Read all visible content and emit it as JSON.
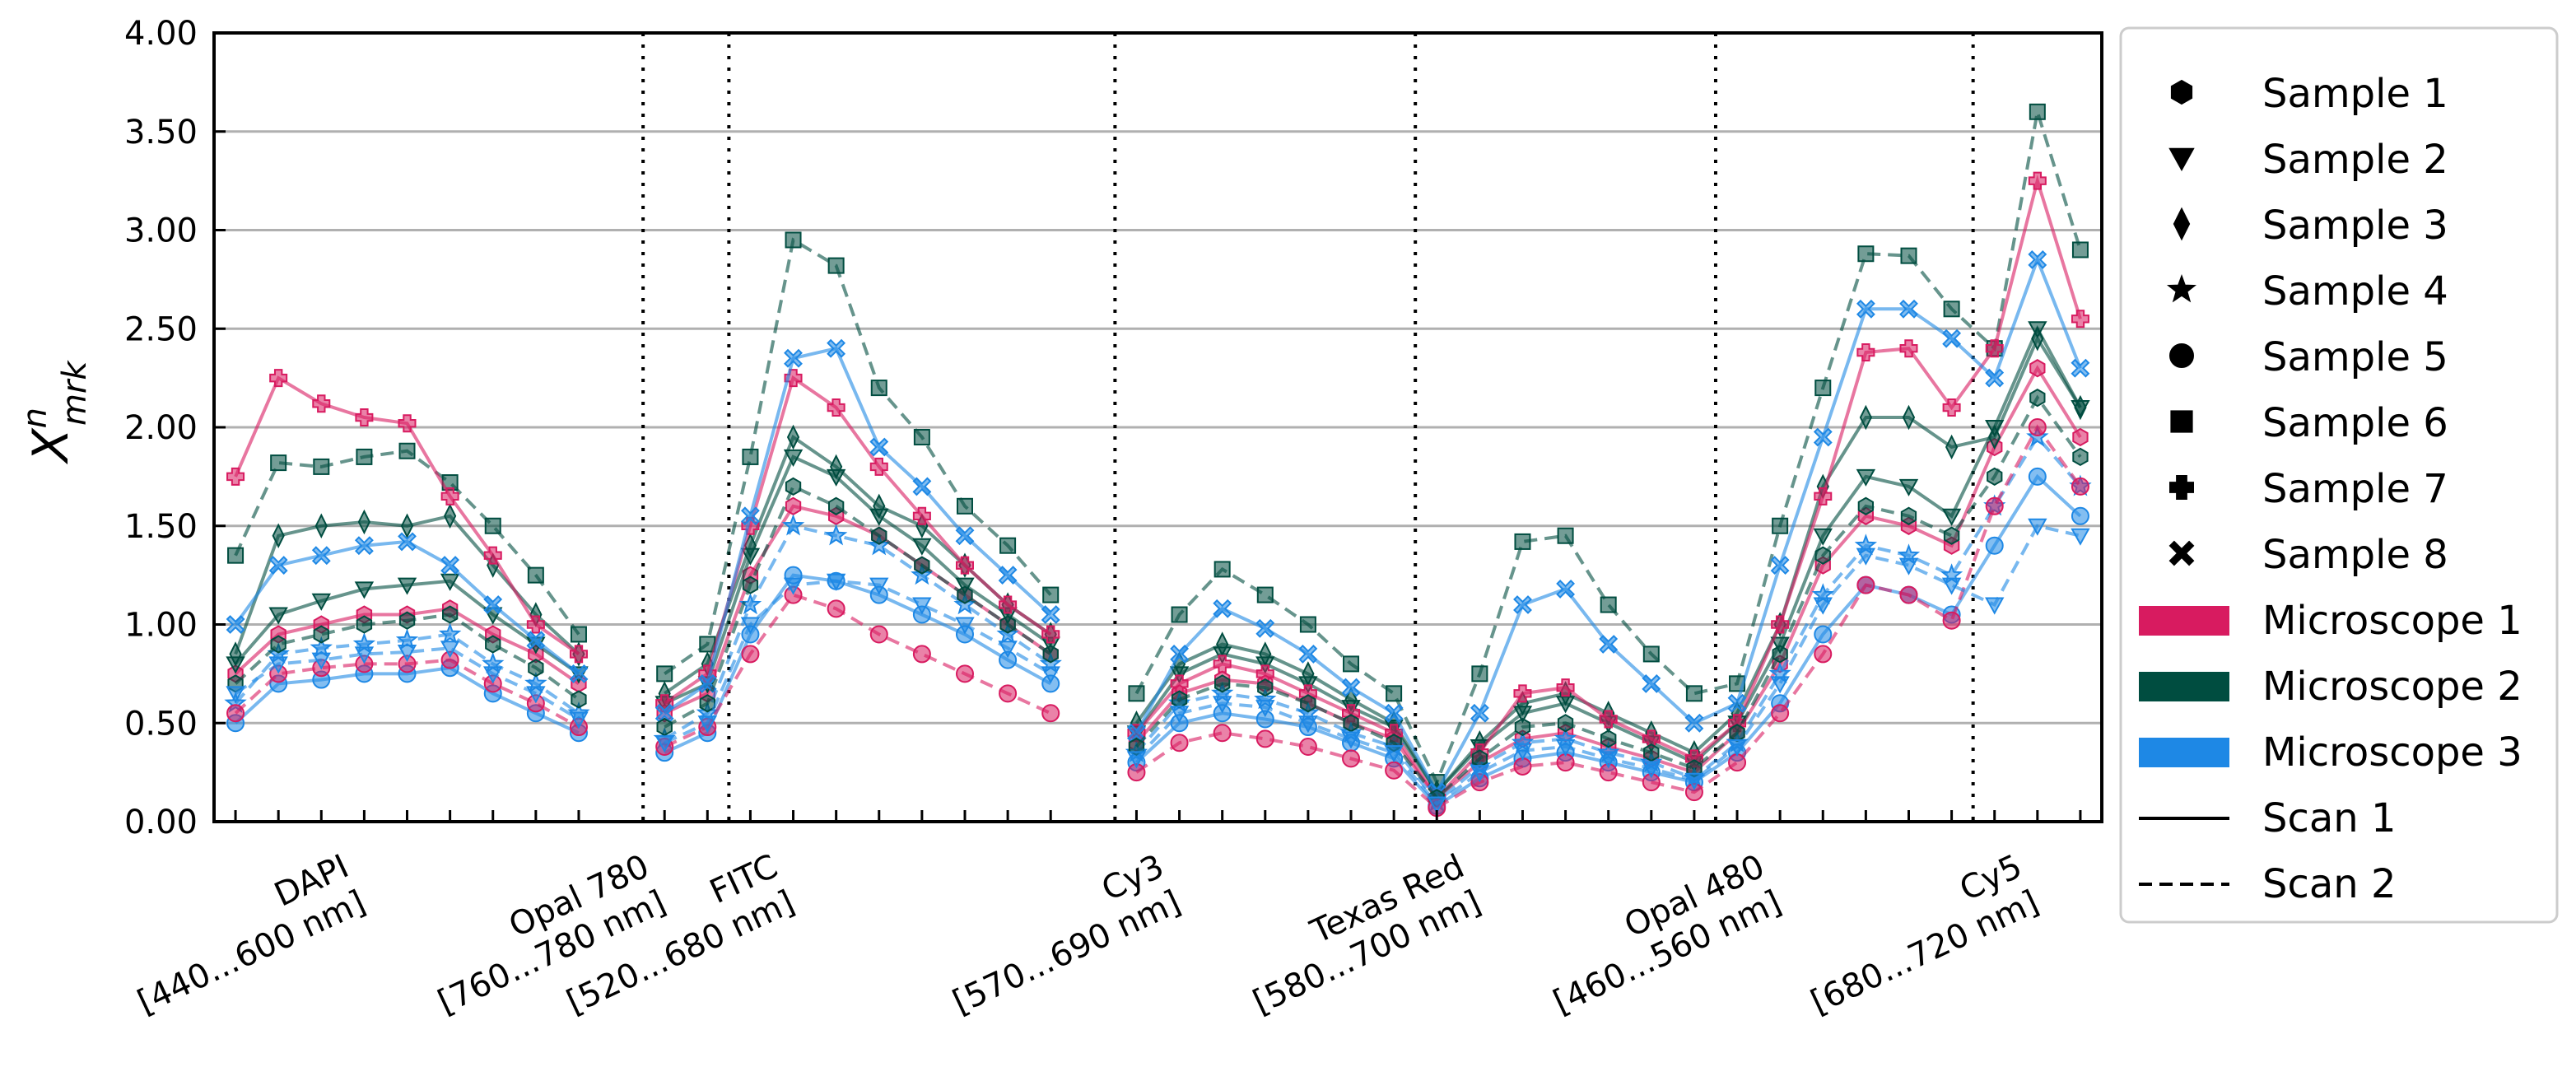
{
  "chart_data": {
    "type": "line",
    "ylabel": "X",
    "ylabel_sup": "n",
    "ylabel_sub": "mrk",
    "ylim": [
      0,
      4
    ],
    "yticks": [
      "0.00",
      "0.50",
      "1.00",
      "1.50",
      "2.00",
      "2.50",
      "3.00",
      "3.50",
      "4.00"
    ],
    "grid": "horizontal",
    "xlim": [
      -0.5,
      43.5
    ],
    "groups": [
      {
        "name": "DAPI",
        "range": "[440...600 nm]",
        "start": 0,
        "end": 8,
        "label_pos": 2.5
      },
      {
        "name": "Opal 780",
        "range": "[760...780 nm]",
        "start": 10,
        "end": 11,
        "label_pos": 9.5
      },
      {
        "name": "FITC",
        "range": "[520...680 nm]",
        "start": 12,
        "end": 19,
        "label_pos": 12.5
      },
      {
        "name": "Cy3",
        "range": "[570...690 nm]",
        "start": 21,
        "end": 27,
        "label_pos": 21.5
      },
      {
        "name": "Texas Red",
        "range": "[580...700 nm]",
        "start": 28,
        "end": 34,
        "label_pos": 28.5
      },
      {
        "name": "Opal 480",
        "range": "[460...560 nm]",
        "start": 35,
        "end": 40,
        "label_pos": 35.5
      },
      {
        "name": "Cy5",
        "range": "[680...720 nm]",
        "start": 41,
        "end": 43,
        "label_pos": 41.5
      }
    ],
    "separators": [
      9.5,
      11.5,
      20.5,
      27.5,
      34.5,
      40.5,
      43.5
    ],
    "series": [
      {
        "sample": 1,
        "microscope": 1,
        "scan": 1,
        "values": [
          0.75,
          0.95,
          1.0,
          1.05,
          1.05,
          1.08,
          0.95,
          0.85,
          0.7,
          null,
          0.55,
          0.65,
          1.25,
          1.6,
          1.55,
          1.45,
          1.3,
          1.15,
          1.0,
          0.85,
          null,
          0.4,
          0.65,
          0.72,
          0.7,
          0.6,
          0.5,
          0.42,
          0.12,
          0.3,
          0.42,
          0.45,
          0.38,
          0.32,
          0.25,
          0.45,
          0.8,
          1.3,
          1.55,
          1.5,
          1.4,
          1.9,
          2.3,
          1.95
        ]
      },
      {
        "sample": 2,
        "microscope": 2,
        "scan": 1,
        "values": [
          0.8,
          1.05,
          1.12,
          1.18,
          1.2,
          1.22,
          1.05,
          0.9,
          0.75,
          null,
          0.6,
          0.7,
          1.35,
          1.85,
          1.75,
          1.55,
          1.4,
          1.2,
          1.05,
          0.9,
          null,
          0.45,
          0.75,
          0.85,
          0.8,
          0.7,
          0.58,
          0.48,
          0.15,
          0.38,
          0.55,
          0.6,
          0.5,
          0.4,
          0.3,
          0.5,
          0.9,
          1.45,
          1.75,
          1.7,
          1.55,
          2.0,
          2.5,
          2.1
        ]
      },
      {
        "sample": 3,
        "microscope": 2,
        "scan": 1,
        "values": [
          0.85,
          1.45,
          1.5,
          1.52,
          1.5,
          1.55,
          1.3,
          1.05,
          0.85,
          null,
          0.65,
          0.8,
          1.4,
          1.95,
          1.8,
          1.6,
          1.5,
          1.3,
          1.1,
          0.95,
          null,
          0.5,
          0.8,
          0.9,
          0.85,
          0.75,
          0.62,
          0.5,
          0.15,
          0.4,
          0.6,
          0.65,
          0.55,
          0.45,
          0.35,
          0.55,
          1.0,
          1.7,
          2.05,
          2.05,
          1.9,
          1.95,
          2.45,
          2.1
        ]
      },
      {
        "sample": 4,
        "microscope": 3,
        "scan": 2,
        "values": [
          0.6,
          0.85,
          0.88,
          0.9,
          0.92,
          0.95,
          0.8,
          0.7,
          0.55,
          null,
          0.42,
          0.55,
          1.1,
          1.5,
          1.45,
          1.4,
          1.25,
          1.1,
          0.95,
          0.8,
          null,
          0.35,
          0.6,
          0.65,
          0.62,
          0.55,
          0.45,
          0.38,
          0.1,
          0.28,
          0.4,
          0.42,
          0.35,
          0.3,
          0.22,
          0.4,
          0.75,
          1.15,
          1.4,
          1.35,
          1.25,
          1.6,
          1.95,
          1.7
        ]
      },
      {
        "sample": 5,
        "microscope": 3,
        "scan": 1,
        "values": [
          0.5,
          0.7,
          0.72,
          0.75,
          0.75,
          0.78,
          0.65,
          0.55,
          0.45,
          null,
          0.35,
          0.45,
          0.95,
          1.25,
          1.22,
          1.15,
          1.05,
          0.95,
          0.82,
          0.7,
          null,
          0.3,
          0.5,
          0.55,
          0.52,
          0.48,
          0.4,
          0.32,
          0.08,
          0.22,
          0.32,
          0.35,
          0.3,
          0.25,
          0.2,
          0.35,
          0.6,
          0.95,
          1.2,
          1.15,
          1.05,
          1.4,
          1.75,
          1.55
        ]
      },
      {
        "sample": 6,
        "microscope": 2,
        "scan": 2,
        "values": [
          1.35,
          1.82,
          1.8,
          1.85,
          1.88,
          1.72,
          1.5,
          1.25,
          0.95,
          null,
          0.75,
          0.9,
          1.85,
          2.95,
          2.82,
          2.2,
          1.95,
          1.6,
          1.4,
          1.15,
          null,
          0.65,
          1.05,
          1.28,
          1.15,
          1.0,
          0.8,
          0.65,
          0.2,
          0.75,
          1.42,
          1.45,
          1.1,
          0.85,
          0.65,
          0.7,
          1.5,
          2.2,
          2.88,
          2.87,
          2.6,
          2.4,
          3.6,
          2.9
        ]
      },
      {
        "sample": 7,
        "microscope": 1,
        "scan": 1,
        "values": [
          1.75,
          2.25,
          2.12,
          2.05,
          2.02,
          1.65,
          1.35,
          1.0,
          0.85,
          null,
          0.6,
          0.75,
          1.5,
          2.25,
          2.1,
          1.8,
          1.55,
          1.3,
          1.1,
          0.95,
          null,
          0.45,
          0.7,
          0.8,
          0.75,
          0.65,
          0.55,
          0.45,
          0.12,
          0.35,
          0.65,
          0.68,
          0.52,
          0.42,
          0.32,
          0.5,
          1.0,
          1.65,
          2.38,
          2.4,
          2.1,
          2.4,
          3.25,
          2.55
        ]
      },
      {
        "sample": 8,
        "microscope": 3,
        "scan": 1,
        "values": [
          1.0,
          1.3,
          1.35,
          1.4,
          1.42,
          1.3,
          1.1,
          0.92,
          0.75,
          null,
          0.55,
          0.7,
          1.55,
          2.35,
          2.4,
          1.9,
          1.7,
          1.45,
          1.25,
          1.05,
          null,
          0.45,
          0.85,
          1.08,
          0.98,
          0.85,
          0.68,
          0.55,
          0.15,
          0.55,
          1.1,
          1.18,
          0.9,
          0.7,
          0.5,
          0.6,
          1.3,
          1.95,
          2.6,
          2.6,
          2.45,
          2.25,
          2.85,
          2.3
        ]
      },
      {
        "sample": 1,
        "microscope": 2,
        "scan": 2,
        "values": [
          0.7,
          0.9,
          0.95,
          1.0,
          1.02,
          1.05,
          0.9,
          0.78,
          0.62,
          null,
          0.48,
          0.6,
          1.2,
          1.7,
          1.6,
          1.45,
          1.3,
          1.15,
          1.0,
          0.85,
          null,
          0.38,
          0.62,
          0.7,
          0.68,
          0.6,
          0.5,
          0.4,
          0.12,
          0.32,
          0.48,
          0.5,
          0.42,
          0.35,
          0.27,
          0.45,
          0.85,
          1.35,
          1.6,
          1.55,
          1.45,
          1.75,
          2.15,
          1.85
        ]
      },
      {
        "sample": 5,
        "microscope": 1,
        "scan": 2,
        "values": [
          0.55,
          0.75,
          0.78,
          0.8,
          0.8,
          0.82,
          0.7,
          0.6,
          0.48,
          null,
          0.38,
          0.48,
          0.85,
          1.15,
          1.08,
          0.95,
          0.85,
          0.75,
          0.65,
          0.55,
          null,
          0.25,
          0.4,
          0.45,
          0.42,
          0.38,
          0.32,
          0.26,
          0.07,
          0.2,
          0.28,
          0.3,
          0.25,
          0.2,
          0.15,
          0.3,
          0.55,
          0.85,
          1.2,
          1.15,
          1.02,
          1.6,
          2.0,
          1.7
        ]
      },
      {
        "sample": 2,
        "microscope": 3,
        "scan": 2,
        "values": [
          0.65,
          0.8,
          0.82,
          0.85,
          0.86,
          0.88,
          0.75,
          0.65,
          0.52,
          null,
          0.4,
          0.5,
          1.0,
          1.2,
          1.22,
          1.2,
          1.1,
          1.0,
          0.88,
          0.75,
          null,
          0.32,
          0.55,
          0.6,
          0.58,
          0.5,
          0.42,
          0.35,
          0.09,
          0.25,
          0.36,
          0.38,
          0.32,
          0.27,
          0.21,
          0.38,
          0.7,
          1.1,
          1.35,
          1.3,
          1.2,
          1.1,
          1.5,
          1.45
        ]
      }
    ],
    "legend": {
      "placement": "right",
      "samples": [
        "Sample 1",
        "Sample 2",
        "Sample 3",
        "Sample 4",
        "Sample 5",
        "Sample 6",
        "Sample 7",
        "Sample 8"
      ],
      "microscopes": [
        {
          "label": "Microscope 1",
          "color": "#d81b60"
        },
        {
          "label": "Microscope 2",
          "color": "#004d40"
        },
        {
          "label": "Microscope 3",
          "color": "#1e88e5"
        }
      ],
      "scans": [
        {
          "label": "Scan 1",
          "style": "solid"
        },
        {
          "label": "Scan 2",
          "style": "dashed"
        }
      ]
    }
  }
}
